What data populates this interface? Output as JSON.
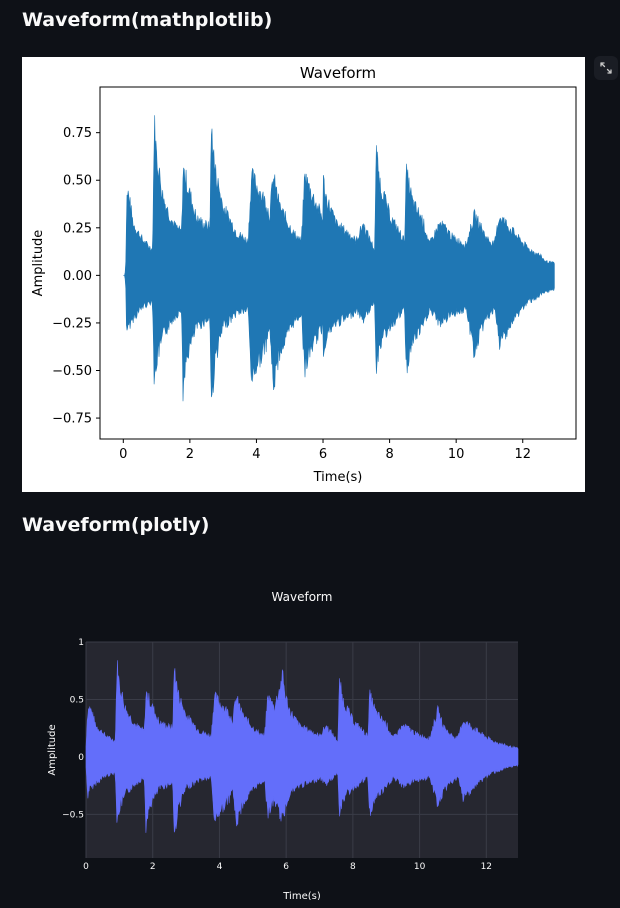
{
  "sections": [
    {
      "title": "Waveform(mathplotlib)"
    },
    {
      "title": "Waveform(plotly)"
    }
  ],
  "fullscreen_icon": "expand-arrows-icon",
  "colors": {
    "page_bg": "#0e1117",
    "mpl_trace": "#1f77b4",
    "plotly_trace": "#636efa",
    "plotly_plot_bg": "#262730"
  },
  "chart_data": [
    {
      "type": "line",
      "title": "Waveform",
      "xlabel": "Time(s)",
      "ylabel": "Amplitude",
      "xlim": [
        -0.7,
        13.6
      ],
      "ylim": [
        -0.86,
        0.99
      ],
      "x_ticks": [
        0,
        2,
        4,
        6,
        8,
        10,
        12
      ],
      "x_tick_labels": [
        "0",
        "2",
        "4",
        "6",
        "8",
        "10",
        "12"
      ],
      "y_ticks": [
        0.75,
        0.5,
        0.25,
        0,
        -0.25,
        -0.5,
        -0.75
      ],
      "y_tick_labels": [
        "0.75",
        "0.50",
        "0.25",
        "0.00",
        "−0.25",
        "−0.50",
        "−0.75"
      ],
      "grid": false,
      "series": [
        {
          "t": [
            0,
            0.05,
            0.08,
            0.1,
            0.15,
            0.3,
            0.6,
            0.88,
            0.93,
            1.0,
            1.2,
            1.5,
            1.75,
            1.8,
            1.9,
            2.2,
            2.6,
            2.65,
            2.75,
            3.0,
            3.4,
            3.75,
            3.85,
            4.3,
            4.4,
            4.5,
            4.7,
            5.1,
            5.35,
            5.45,
            5.65,
            6.0,
            5.9,
            5.97,
            6.1,
            6.4,
            6.8,
            7.0,
            7.2,
            7.55,
            7.6,
            7.7,
            8.0,
            8.45,
            8.5,
            8.7,
            9.0,
            9.2,
            9.5,
            9.65,
            9.9,
            10.3,
            10.55,
            10.7,
            10.9,
            11.15,
            11.3,
            11.6,
            11.95,
            12.2,
            12.5,
            12.7,
            12.95
          ],
          "upper": [
            0,
            0,
            0.1,
            0.45,
            0.48,
            0.3,
            0.2,
            0.15,
            0.9,
            0.7,
            0.45,
            0.3,
            0.25,
            0.62,
            0.55,
            0.33,
            0.28,
            0.88,
            0.62,
            0.4,
            0.25,
            0.2,
            0.58,
            0.42,
            0.35,
            0.58,
            0.4,
            0.25,
            0.2,
            0.58,
            0.48,
            0.33,
            0.78,
            0.6,
            0.45,
            0.3,
            0.24,
            0.2,
            0.3,
            0.15,
            0.72,
            0.55,
            0.35,
            0.2,
            0.6,
            0.42,
            0.32,
            0.18,
            0.3,
            0.28,
            0.22,
            0.18,
            0.35,
            0.3,
            0.22,
            0.18,
            0.35,
            0.28,
            0.2,
            0.15,
            0.12,
            0.08,
            0.07
          ],
          "lower": [
            0,
            0,
            -0.1,
            -0.38,
            -0.3,
            -0.25,
            -0.18,
            -0.15,
            -0.65,
            -0.5,
            -0.35,
            -0.25,
            -0.2,
            -0.72,
            -0.48,
            -0.3,
            -0.25,
            -0.76,
            -0.5,
            -0.3,
            -0.22,
            -0.2,
            -0.6,
            -0.4,
            -0.3,
            -0.65,
            -0.45,
            -0.28,
            -0.22,
            -0.55,
            -0.42,
            -0.3,
            -0.62,
            -0.5,
            -0.35,
            -0.28,
            -0.24,
            -0.2,
            -0.26,
            -0.15,
            -0.55,
            -0.4,
            -0.3,
            -0.2,
            -0.55,
            -0.38,
            -0.3,
            -0.2,
            -0.28,
            -0.26,
            -0.22,
            -0.2,
            -0.46,
            -0.35,
            -0.25,
            -0.2,
            -0.4,
            -0.3,
            -0.2,
            -0.15,
            -0.12,
            -0.1,
            -0.08
          ]
        }
      ]
    },
    {
      "type": "line",
      "title": "Waveform",
      "xlabel": "Time(s)",
      "ylabel": "Amplitude",
      "xlim": [
        0,
        12.95
      ],
      "ylim": [
        -0.88,
        1.0
      ],
      "x_ticks": [
        0,
        2,
        4,
        6,
        8,
        10,
        12
      ],
      "x_tick_labels": [
        "0",
        "2",
        "4",
        "6",
        "8",
        "10",
        "12"
      ],
      "y_ticks": [
        1,
        0.5,
        0,
        -0.5
      ],
      "y_tick_labels": [
        "1",
        "0.5",
        "0",
        "−0.5"
      ],
      "grid": true,
      "series": [
        {
          "t": [
            0,
            0.05,
            0.1,
            0.15,
            0.3,
            0.6,
            0.88,
            0.93,
            1.0,
            1.2,
            1.5,
            1.75,
            1.8,
            1.9,
            2.2,
            2.6,
            2.65,
            2.75,
            3.0,
            3.4,
            3.75,
            3.85,
            4.3,
            4.4,
            4.5,
            4.7,
            5.1,
            5.35,
            5.45,
            5.65,
            5.9,
            5.97,
            6.1,
            6.4,
            6.8,
            7.0,
            7.2,
            7.55,
            7.6,
            7.7,
            8.0,
            8.45,
            8.5,
            8.7,
            9.0,
            9.2,
            9.5,
            9.65,
            9.9,
            10.3,
            10.55,
            10.7,
            10.9,
            11.15,
            11.3,
            11.6,
            11.95,
            12.2,
            12.5,
            12.7,
            12.95
          ],
          "upper": [
            0.1,
            0.45,
            0.48,
            0.45,
            0.3,
            0.2,
            0.15,
            0.9,
            0.7,
            0.45,
            0.3,
            0.25,
            0.62,
            0.55,
            0.33,
            0.28,
            0.88,
            0.62,
            0.4,
            0.25,
            0.2,
            0.58,
            0.42,
            0.35,
            0.58,
            0.4,
            0.25,
            0.2,
            0.58,
            0.48,
            0.78,
            0.6,
            0.45,
            0.3,
            0.24,
            0.2,
            0.3,
            0.15,
            0.72,
            0.55,
            0.35,
            0.2,
            0.6,
            0.42,
            0.32,
            0.18,
            0.3,
            0.28,
            0.22,
            0.18,
            0.45,
            0.3,
            0.22,
            0.18,
            0.35,
            0.28,
            0.2,
            0.15,
            0.12,
            0.1,
            0.08
          ],
          "lower": [
            -0.1,
            -0.38,
            -0.3,
            -0.3,
            -0.25,
            -0.18,
            -0.15,
            -0.65,
            -0.5,
            -0.35,
            -0.25,
            -0.2,
            -0.72,
            -0.48,
            -0.3,
            -0.25,
            -0.78,
            -0.5,
            -0.3,
            -0.22,
            -0.2,
            -0.6,
            -0.4,
            -0.3,
            -0.65,
            -0.45,
            -0.28,
            -0.22,
            -0.55,
            -0.42,
            -0.62,
            -0.5,
            -0.35,
            -0.28,
            -0.24,
            -0.2,
            -0.26,
            -0.15,
            -0.55,
            -0.4,
            -0.3,
            -0.2,
            -0.55,
            -0.38,
            -0.3,
            -0.2,
            -0.28,
            -0.26,
            -0.22,
            -0.2,
            -0.46,
            -0.35,
            -0.25,
            -0.2,
            -0.4,
            -0.3,
            -0.2,
            -0.15,
            -0.12,
            -0.1,
            -0.08
          ]
        }
      ]
    }
  ]
}
